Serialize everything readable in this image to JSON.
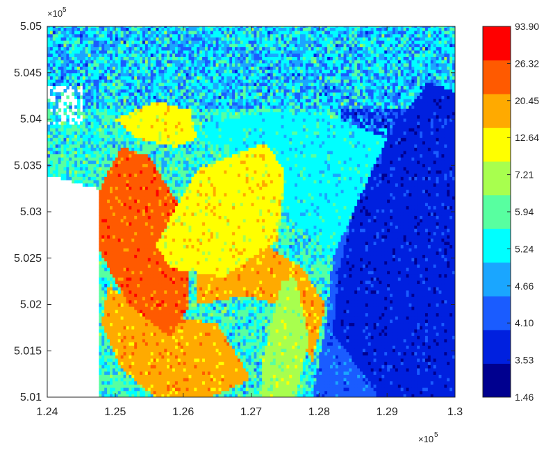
{
  "chart_data": {
    "type": "heatmap",
    "title": "",
    "xlabel": "",
    "ylabel": "",
    "x_multiplier": "×10",
    "y_multiplier": "×10",
    "exponent": "5",
    "xlim": [
      1.24,
      1.3
    ],
    "ylim": [
      5.01,
      5.05
    ],
    "xticks": [
      "1.24",
      "1.25",
      "1.26",
      "1.27",
      "1.28",
      "1.29",
      "1.3"
    ],
    "yticks": [
      "5.01",
      "5.015",
      "5.02",
      "5.025",
      "5.03",
      "5.035",
      "5.04",
      "5.045",
      "5.05"
    ],
    "grid": false,
    "colorbar": {
      "levels": [
        "1.46",
        "3.53",
        "4.10",
        "4.66",
        "5.24",
        "5.94",
        "7.21",
        "12.64",
        "20.45",
        "26.32",
        "93.90"
      ],
      "colors": [
        "#00008f",
        "#0020df",
        "#1a5cff",
        "#1aa6ff",
        "#00ffff",
        "#58ffa0",
        "#a8ff4e",
        "#ffff00",
        "#ffaa00",
        "#ff5a00",
        "#ff0000"
      ]
    },
    "regions": [
      {
        "class": 7,
        "points": [
          [
            1.256,
            5.0265
          ],
          [
            1.262,
            5.0345
          ],
          [
            1.272,
            5.0375
          ],
          [
            1.275,
            5.0345
          ],
          [
            1.274,
            5.027
          ],
          [
            1.266,
            5.023
          ],
          [
            1.258,
            5.024
          ]
        ]
      },
      {
        "class": 6,
        "points": [
          [
            1.2715,
            5.0135
          ],
          [
            1.2745,
            5.0225
          ],
          [
            1.2765,
            5.023
          ],
          [
            1.2775,
            5.02
          ],
          [
            1.2785,
            5.016
          ],
          [
            1.2765,
            5.01
          ],
          [
            1.2715,
            5.01
          ]
        ]
      },
      {
        "class": 9,
        "points": [
          [
            1.248,
            5.033
          ],
          [
            1.246,
            5.028
          ],
          [
            1.252,
            5.02
          ],
          [
            1.258,
            5.0165
          ],
          [
            1.261,
            5.02
          ],
          [
            1.26,
            5.03
          ],
          [
            1.255,
            5.036
          ],
          [
            1.251,
            5.037
          ]
        ]
      },
      {
        "class": 8,
        "points": [
          [
            1.249,
            5.022
          ],
          [
            1.256,
            5.019
          ],
          [
            1.265,
            5.018
          ],
          [
            1.27,
            5.012
          ],
          [
            1.264,
            5.01
          ],
          [
            1.256,
            5.01
          ],
          [
            1.251,
            5.013
          ],
          [
            1.248,
            5.018
          ]
        ]
      },
      {
        "class": 8,
        "points": [
          [
            1.262,
            5.025
          ],
          [
            1.27,
            5.0275
          ],
          [
            1.2775,
            5.024
          ],
          [
            1.281,
            5.02
          ],
          [
            1.279,
            5.014
          ],
          [
            1.274,
            5.02
          ],
          [
            1.269,
            5.021
          ],
          [
            1.262,
            5.02
          ]
        ]
      },
      {
        "class": 7,
        "points": [
          [
            1.25,
            5.04
          ],
          [
            1.256,
            5.042
          ],
          [
            1.261,
            5.041
          ],
          [
            1.262,
            5.038
          ],
          [
            1.259,
            5.037
          ],
          [
            1.253,
            5.038
          ]
        ]
      },
      {
        "class": 1,
        "points": [
          [
            1.289,
            5.01
          ],
          [
            1.3,
            5.01
          ],
          [
            1.3,
            5.043
          ],
          [
            1.296,
            5.044
          ],
          [
            1.29,
            5.038
          ],
          [
            1.285,
            5.03
          ],
          [
            1.283,
            5.024
          ],
          [
            1.282,
            5.017
          ]
        ]
      },
      {
        "class": 2,
        "points": [
          [
            1.279,
            5.01
          ],
          [
            1.289,
            5.01
          ],
          [
            1.29,
            5.03
          ],
          [
            1.285,
            5.03
          ],
          [
            1.282,
            5.025
          ],
          [
            1.281,
            5.018
          ]
        ]
      },
      {
        "class": 4,
        "points": [
          [
            1.258,
            5.039
          ],
          [
            1.275,
            5.041
          ],
          [
            1.283,
            5.04
          ],
          [
            1.29,
            5.038
          ],
          [
            1.285,
            5.03
          ],
          [
            1.282,
            5.025
          ],
          [
            1.275,
            5.03
          ],
          [
            1.27,
            5.036
          ],
          [
            1.262,
            5.038
          ]
        ]
      }
    ]
  }
}
